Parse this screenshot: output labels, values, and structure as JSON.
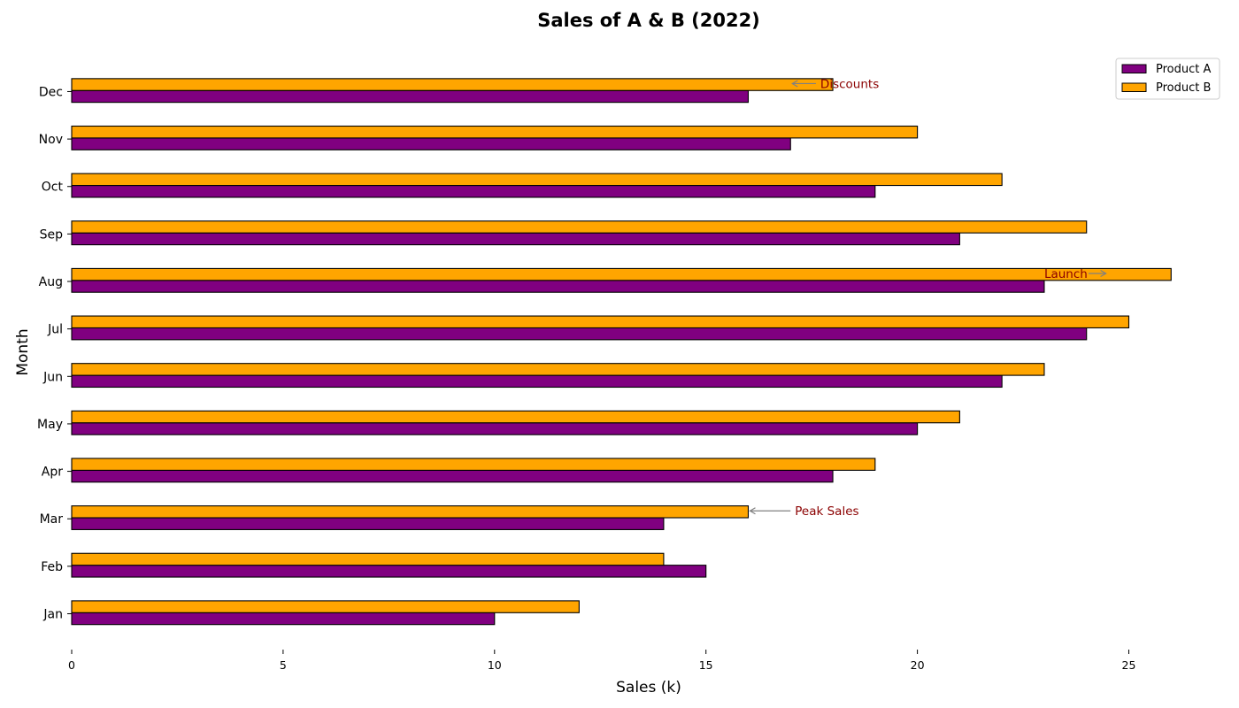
{
  "chart_data": {
    "type": "bar",
    "orientation": "horizontal",
    "title": "Sales of A & B (2022)",
    "xlabel": "Sales (k)",
    "ylabel": "Month",
    "categories": [
      "Jan",
      "Feb",
      "Mar",
      "Apr",
      "May",
      "Jun",
      "Jul",
      "Aug",
      "Sep",
      "Oct",
      "Nov",
      "Dec"
    ],
    "series": [
      {
        "name": "Product A",
        "color": "#800080",
        "values": [
          10,
          15,
          14,
          18,
          20,
          22,
          24,
          23,
          21,
          19,
          17,
          16
        ]
      },
      {
        "name": "Product B",
        "color": "#FFA500",
        "values": [
          12,
          14,
          16,
          19,
          21,
          23,
          25,
          26,
          24,
          22,
          20,
          18
        ]
      }
    ],
    "xlim": [
      0,
      27
    ],
    "xticks": [
      0,
      5,
      10,
      15,
      20,
      25
    ],
    "grid": false,
    "legend_position": "top-right",
    "annotations": [
      {
        "text": "Peak Sales",
        "category": "Mar",
        "target": 16,
        "text_at": 17,
        "color": "#8B0000",
        "arrow": "left"
      },
      {
        "text": "Launch",
        "category": "Aug",
        "target": 24.5,
        "text_at": 23,
        "color": "#8B0000",
        "arrow": "right"
      },
      {
        "text": "Discounts",
        "category": "Dec",
        "target": 17,
        "text_at": 17.6,
        "color": "#8B0000",
        "arrow": "left"
      }
    ]
  }
}
